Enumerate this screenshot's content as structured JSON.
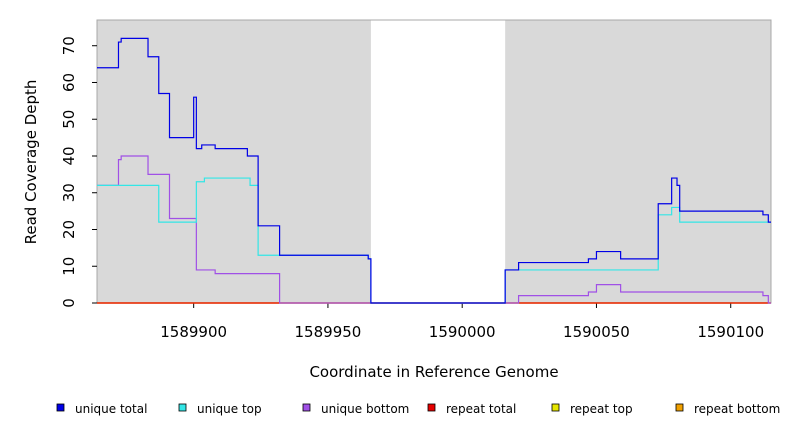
{
  "chart_data": {
    "type": "line",
    "title": "",
    "xlabel": "Coordinate in Reference Genome",
    "ylabel": "Read Coverage Depth",
    "xlim": [
      1589864,
      1590115
    ],
    "ylim": [
      0,
      77
    ],
    "x_ticks": [
      1589900,
      1589950,
      1590000,
      1590050,
      1590100
    ],
    "x_tick_labels": [
      "1589900",
      "1589950",
      "1590000",
      "1590050",
      "1590100"
    ],
    "y_ticks": [
      0,
      10,
      20,
      30,
      40,
      50,
      60,
      70
    ],
    "y_tick_labels": [
      "0",
      "10",
      "20",
      "30",
      "40",
      "50",
      "60",
      "70"
    ],
    "shaded_regions": [
      {
        "x0": 1589864,
        "x1": 1589966,
        "color": "#d9d9d9"
      },
      {
        "x0": 1590016,
        "x1": 1590115,
        "color": "#d9d9d9"
      }
    ],
    "legend_position": "bottom",
    "series": [
      {
        "name": "unique total",
        "color": "#0000e6",
        "step": [
          [
            1589864,
            64
          ],
          [
            1589872,
            71
          ],
          [
            1589873,
            72
          ],
          [
            1589883,
            67
          ],
          [
            1589887,
            57
          ],
          [
            1589891,
            45
          ],
          [
            1589900,
            56
          ],
          [
            1589901,
            42
          ],
          [
            1589903,
            43
          ],
          [
            1589908,
            42
          ],
          [
            1589920,
            40
          ],
          [
            1589924,
            21
          ],
          [
            1589932,
            13
          ],
          [
            1589965,
            12
          ],
          [
            1589966,
            0
          ],
          [
            1590016,
            9
          ],
          [
            1590021,
            11
          ],
          [
            1590047,
            12
          ],
          [
            1590050,
            14
          ],
          [
            1590059,
            12
          ],
          [
            1590073,
            27
          ],
          [
            1590078,
            34
          ],
          [
            1590080,
            32
          ],
          [
            1590081,
            25
          ],
          [
            1590112,
            24
          ],
          [
            1590114,
            22
          ],
          [
            1590115,
            22
          ]
        ]
      },
      {
        "name": "unique top",
        "color": "#33e6e6",
        "step": [
          [
            1589864,
            32
          ],
          [
            1589887,
            22
          ],
          [
            1589901,
            33
          ],
          [
            1589904,
            34
          ],
          [
            1589921,
            32
          ],
          [
            1589924,
            13
          ],
          [
            1589965,
            12
          ],
          [
            1589966,
            0
          ],
          [
            1590016,
            9
          ],
          [
            1590021,
            9
          ],
          [
            1590073,
            24
          ],
          [
            1590078,
            26
          ],
          [
            1590081,
            22
          ],
          [
            1590115,
            22
          ]
        ]
      },
      {
        "name": "unique bottom",
        "color": "#a050e6",
        "step": [
          [
            1589864,
            32
          ],
          [
            1589872,
            39
          ],
          [
            1589873,
            40
          ],
          [
            1589883,
            35
          ],
          [
            1589891,
            23
          ],
          [
            1589901,
            9
          ],
          [
            1589908,
            8
          ],
          [
            1589932,
            0
          ],
          [
            1590021,
            2
          ],
          [
            1590047,
            3
          ],
          [
            1590050,
            5
          ],
          [
            1590059,
            3
          ],
          [
            1590112,
            2
          ],
          [
            1590114,
            0
          ],
          [
            1590115,
            0
          ]
        ]
      },
      {
        "name": "repeat total",
        "color": "#e60000",
        "step": [
          [
            1589864,
            0
          ],
          [
            1590115,
            0
          ]
        ]
      },
      {
        "name": "repeat top",
        "color": "#e6e600",
        "step": [
          [
            1589864,
            0
          ],
          [
            1590115,
            0
          ]
        ]
      },
      {
        "name": "repeat bottom",
        "color": "#f0a000",
        "step": [
          [
            1589864,
            0
          ],
          [
            1590115,
            0
          ]
        ]
      }
    ]
  }
}
